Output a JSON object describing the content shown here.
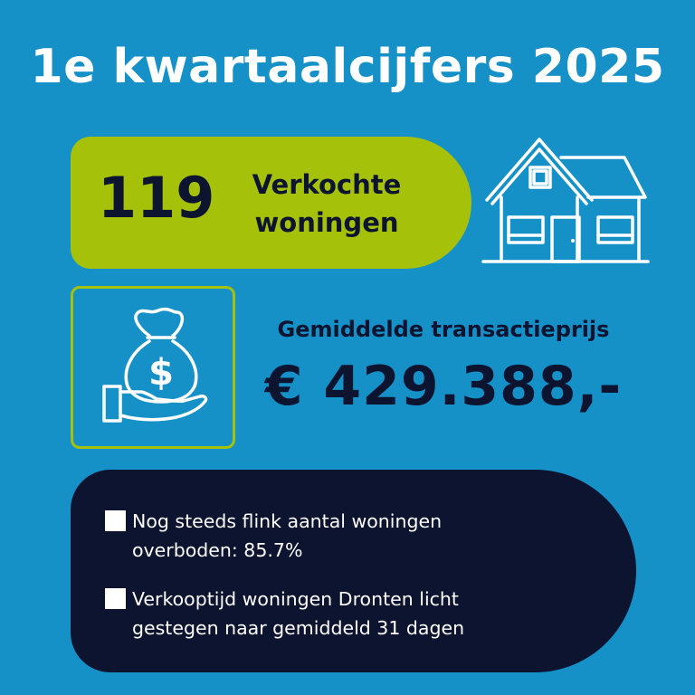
{
  "title": "1e kwartaalcijfers 2025",
  "sales": {
    "count": "119",
    "label_line1": "Verkochte",
    "label_line2": "woningen"
  },
  "price": {
    "label": "Gemiddelde transactieprijs",
    "value": "€ 429.388,-"
  },
  "bullets": [
    {
      "line1": "Nog steeds flink aantal woningen",
      "line2": "overboden: 85.7%"
    },
    {
      "line1": "Verkooptijd woningen Dronten licht",
      "line2": "gestegen naar gemiddeld 31 dagen"
    }
  ],
  "icons": {
    "house": "house-icon",
    "money": "money-bag-hand-icon"
  },
  "colors": {
    "background": "#1591c8",
    "accent_green": "#a6c10a",
    "navy": "#0c1430",
    "white": "#ffffff"
  }
}
